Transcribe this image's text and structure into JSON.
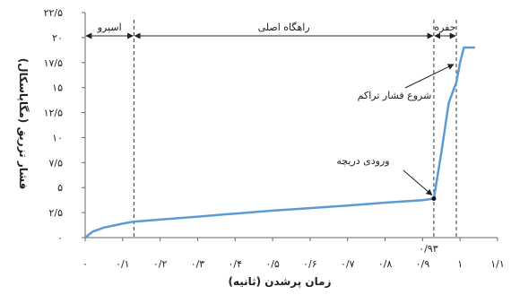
{
  "chart_data": {
    "type": "line",
    "xlabel": "زمان پرشدن (ثانیه)",
    "ylabel": "فشار تزریق (مگاپاسکال)",
    "xlim": [
      0,
      1.1
    ],
    "ylim": [
      0,
      22.5
    ],
    "x_ticks": [
      {
        "value": 0,
        "label": "۰"
      },
      {
        "value": 0.1,
        "label": "۰/۱"
      },
      {
        "value": 0.2,
        "label": "۰/۲"
      },
      {
        "value": 0.3,
        "label": "۰/۳"
      },
      {
        "value": 0.4,
        "label": "۰/۴"
      },
      {
        "value": 0.5,
        "label": "۰/۵"
      },
      {
        "value": 0.6,
        "label": "۰/۶"
      },
      {
        "value": 0.7,
        "label": "۰/۷"
      },
      {
        "value": 0.8,
        "label": "۰/۸"
      },
      {
        "value": 0.9,
        "label": "۰/۹"
      },
      {
        "value": 1.0,
        "label": "۱"
      },
      {
        "value": 1.1,
        "label": "۱/۱"
      }
    ],
    "y_ticks": [
      {
        "value": 0,
        "label": "۰"
      },
      {
        "value": 2.5,
        "label": "۲/۵"
      },
      {
        "value": 5,
        "label": "۵"
      },
      {
        "value": 7.5,
        "label": "۷/۵"
      },
      {
        "value": 10,
        "label": "۱۰"
      },
      {
        "value": 12.5,
        "label": "۱۲/۵"
      },
      {
        "value": 15,
        "label": "۱۵"
      },
      {
        "value": 17.5,
        "label": "۱۷/۵"
      },
      {
        "value": 20,
        "label": "۲۰"
      },
      {
        "value": 22.5,
        "label": "۲۲/۵"
      }
    ],
    "series": [
      {
        "color": "#5b9bd5",
        "x": [
          0,
          0.02,
          0.05,
          0.1,
          0.13,
          0.2,
          0.3,
          0.4,
          0.5,
          0.6,
          0.7,
          0.8,
          0.9,
          0.93,
          0.95,
          0.97,
          0.99,
          1.0,
          1.01,
          1.04
        ],
        "y": [
          0,
          0.6,
          1.0,
          1.4,
          1.6,
          1.8,
          2.1,
          2.4,
          2.7,
          2.95,
          3.2,
          3.5,
          3.75,
          3.9,
          8.5,
          13.5,
          15.5,
          17.5,
          19.0,
          19.0
        ]
      }
    ],
    "dashed_lines": [
      {
        "x": 0.13
      },
      {
        "x": 0.93,
        "label": "۰/۹۳"
      },
      {
        "x": 0.99
      }
    ],
    "regions": [
      {
        "label": "اسپرو",
        "from": 0,
        "to": 0.13
      },
      {
        "label": "راهگاه اصلی",
        "from": 0.13,
        "to": 0.93
      },
      {
        "label": "حفره",
        "from": 0.93,
        "to": 0.99
      }
    ],
    "annotations": [
      {
        "text": "شروع فشار تراکم",
        "point": [
          0.99,
          17.5
        ]
      },
      {
        "text": "ورودی دریچه",
        "point": [
          0.93,
          3.9
        ]
      }
    ]
  }
}
